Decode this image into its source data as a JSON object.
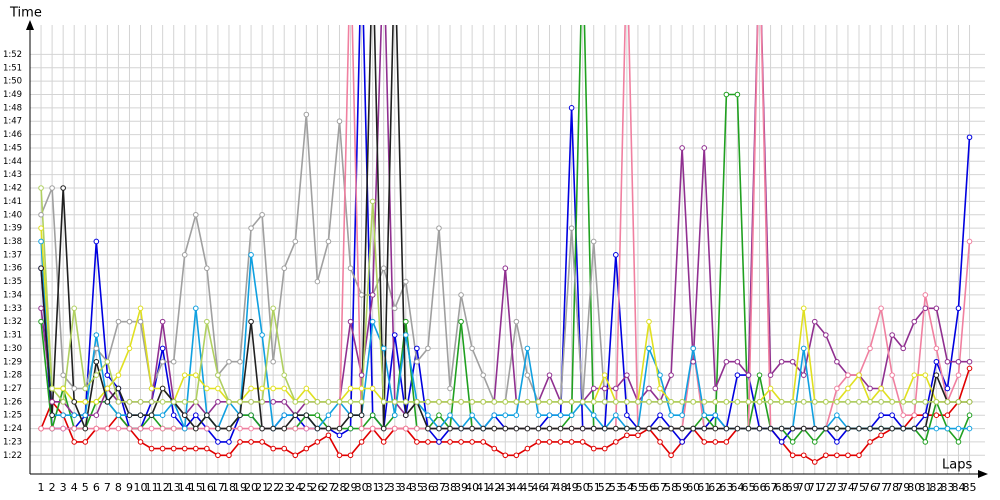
{
  "chart_data": {
    "type": "line",
    "y_label": "Time",
    "x_label": "Laps",
    "xlim": [
      0,
      86.4
    ],
    "ylim": [
      80.6,
      114.2
    ],
    "grid": true,
    "xticks": [
      1,
      2,
      3,
      4,
      5,
      6,
      7,
      8,
      9,
      10,
      11,
      12,
      13,
      14,
      15,
      16,
      17,
      18,
      19,
      20,
      21,
      22,
      23,
      24,
      25,
      26,
      27,
      28,
      29,
      30,
      31,
      32,
      33,
      34,
      35,
      36,
      37,
      38,
      39,
      40,
      41,
      42,
      43,
      44,
      45,
      46,
      47,
      48,
      49,
      50,
      51,
      52,
      53,
      54,
      55,
      56,
      57,
      58,
      59,
      60,
      61,
      62,
      63,
      64,
      65,
      66,
      67,
      68,
      69,
      70,
      71,
      72,
      73,
      74,
      75,
      76,
      77,
      78,
      79,
      80,
      81,
      82,
      83,
      84,
      85
    ],
    "yticks": [
      {
        "value": 82,
        "label": "1:22"
      },
      {
        "value": 83,
        "label": "1:23"
      },
      {
        "value": 84,
        "label": "1:24"
      },
      {
        "value": 85,
        "label": "1:25"
      },
      {
        "value": 86,
        "label": "1:26"
      },
      {
        "value": 87,
        "label": "1:27"
      },
      {
        "value": 88,
        "label": "1:28"
      },
      {
        "value": 89,
        "label": "1:29"
      },
      {
        "value": 90,
        "label": "1:30"
      },
      {
        "value": 91,
        "label": "1:31"
      },
      {
        "value": 92,
        "label": "1:32"
      },
      {
        "value": 93,
        "label": "1:33"
      },
      {
        "value": 94,
        "label": "1:34"
      },
      {
        "value": 95,
        "label": "1:35"
      },
      {
        "value": 96,
        "label": "1:36"
      },
      {
        "value": 97,
        "label": "1:37"
      },
      {
        "value": 98,
        "label": "1:38"
      },
      {
        "value": 99,
        "label": "1:39"
      },
      {
        "value": 100,
        "label": "1:40"
      },
      {
        "value": 101,
        "label": "1:41"
      },
      {
        "value": 102,
        "label": "1:42"
      },
      {
        "value": 103,
        "label": "1:43"
      },
      {
        "value": 104,
        "label": "1:44"
      },
      {
        "value": 105,
        "label": "1:45"
      },
      {
        "value": 106,
        "label": "1:46"
      },
      {
        "value": 107,
        "label": "1:47"
      },
      {
        "value": 108,
        "label": "1:48"
      },
      {
        "value": 109,
        "label": "1:49"
      },
      {
        "value": 110,
        "label": "1:50"
      },
      {
        "value": 111,
        "label": "1:51"
      },
      {
        "value": 112,
        "label": "1:52"
      }
    ],
    "series": [
      {
        "color": "#e00000",
        "values": [
          84,
          86,
          85,
          83,
          83,
          84,
          84,
          85,
          84,
          83,
          82.5,
          82.5,
          82.5,
          82.5,
          82.5,
          82.5,
          82,
          82,
          83,
          83,
          83,
          82.5,
          82.5,
          82,
          82.5,
          83,
          83.5,
          82,
          82,
          83,
          84,
          83,
          84,
          84,
          83,
          83,
          83,
          83,
          83,
          83,
          83,
          82.5,
          82,
          82,
          82.5,
          83,
          83,
          83,
          83,
          83,
          82.5,
          82.5,
          83,
          83.5,
          83.5,
          84,
          83,
          82,
          83,
          84,
          83,
          83,
          83,
          84,
          84,
          84,
          84,
          83,
          82,
          82,
          81.5,
          82,
          82,
          82,
          82,
          83,
          83.5,
          84,
          84,
          85,
          85,
          85,
          85,
          86,
          88.5
        ]
      },
      {
        "color": "#0000e0",
        "values": [
          96,
          84,
          84,
          84,
          85,
          98,
          88,
          87,
          84,
          84,
          86,
          90,
          85,
          84,
          85,
          84,
          83,
          83,
          85,
          85,
          84,
          84,
          85,
          85,
          84,
          84,
          84,
          83.5,
          84,
          120,
          85,
          84,
          91,
          85,
          90,
          84,
          83,
          84,
          84,
          84,
          84,
          85,
          84,
          84,
          84,
          84,
          85,
          85,
          108,
          84,
          84,
          84,
          97,
          85,
          84,
          84,
          85,
          84,
          83,
          84,
          84,
          85,
          84,
          88,
          88,
          84,
          84,
          83,
          84,
          84,
          84,
          84,
          83,
          84,
          84,
          84,
          85,
          85,
          84,
          84,
          85,
          89,
          87,
          93,
          105.8
        ]
      },
      {
        "color": "#20a020",
        "values": [
          92,
          84,
          87,
          84,
          84,
          86,
          86,
          85,
          84,
          84,
          85,
          84,
          84,
          84,
          84,
          85,
          84,
          84,
          85,
          85,
          84,
          84,
          84,
          84,
          85,
          85,
          84,
          84,
          84,
          84,
          85,
          84,
          85,
          92,
          84,
          84,
          85,
          84,
          92,
          84,
          84,
          84,
          84,
          84,
          84,
          84,
          84,
          84,
          85,
          120,
          84,
          84,
          84,
          84,
          84,
          84,
          84,
          84,
          84,
          84,
          85,
          84,
          109,
          109,
          84,
          88,
          84,
          84,
          83,
          84,
          83,
          84,
          84,
          84,
          84,
          84,
          84,
          84,
          84,
          84,
          83,
          86,
          84,
          83,
          85
        ]
      },
      {
        "color": "#a0a0a0",
        "values": [
          100,
          102,
          88,
          87,
          87,
          90,
          89,
          92,
          92,
          92,
          87,
          89,
          89,
          97,
          100,
          96,
          88,
          89,
          89,
          99,
          100,
          89,
          96,
          98,
          107.5,
          95,
          98,
          107,
          96,
          94,
          94,
          96,
          93,
          95,
          89,
          90,
          99,
          87,
          94,
          90,
          88,
          86,
          86,
          92,
          88,
          86,
          86,
          86,
          99,
          86,
          98,
          86,
          86,
          86,
          86,
          86,
          86,
          86,
          86,
          86,
          86,
          86,
          86,
          86,
          86,
          86,
          86,
          86,
          86,
          86,
          86,
          86,
          86,
          86,
          86,
          86,
          86,
          86,
          86,
          86,
          86,
          86,
          86,
          86,
          86
        ]
      },
      {
        "color": "#903090",
        "values": [
          93,
          86,
          86,
          85,
          85,
          85,
          87,
          86,
          86,
          86,
          86,
          92,
          86,
          85,
          86,
          85,
          86,
          86,
          86,
          86,
          86,
          86,
          86,
          85,
          86,
          86,
          86,
          86,
          92,
          88,
          94,
          120,
          86,
          85,
          86,
          86,
          86,
          86,
          86,
          86,
          86,
          86,
          96,
          86,
          86,
          86,
          88,
          86,
          86,
          86,
          87,
          87,
          87,
          88,
          86,
          87,
          86,
          88,
          105,
          89,
          105,
          87,
          89,
          89,
          88,
          120,
          88,
          89,
          89,
          88,
          92,
          91,
          89,
          88,
          88,
          87,
          87,
          91,
          90,
          92,
          93,
          93,
          89,
          89,
          89
        ]
      },
      {
        "color": "#f080a0",
        "values": [
          84,
          84,
          84,
          84,
          84,
          84,
          84,
          84,
          84,
          84,
          84,
          84,
          84,
          84,
          84,
          84,
          84,
          84,
          84,
          84,
          84,
          84,
          84,
          84,
          84,
          84,
          84,
          84,
          120,
          84,
          84,
          84,
          84,
          84,
          84,
          84,
          84,
          84,
          84,
          84,
          84,
          84,
          84,
          84,
          84,
          84,
          84,
          84,
          84,
          84,
          84,
          84,
          84,
          120,
          84,
          84,
          84,
          84,
          84,
          90,
          84,
          84,
          84,
          84,
          84,
          120,
          84,
          84,
          84,
          84,
          84,
          84,
          87,
          88,
          88,
          90,
          93,
          88,
          85,
          85,
          94,
          90,
          86,
          88,
          98
        ]
      },
      {
        "color": "#10a0e0",
        "values": [
          98,
          85,
          85,
          85,
          85,
          91,
          86,
          85,
          85,
          85,
          85,
          85,
          86,
          84,
          93,
          85,
          84,
          86,
          85,
          97,
          91,
          84,
          85,
          85,
          85,
          84,
          85,
          86,
          85,
          85,
          92,
          90,
          85,
          91,
          86,
          85,
          84,
          85,
          84,
          85,
          84,
          85,
          85,
          85,
          90,
          85,
          85,
          85,
          85,
          86,
          85,
          84,
          85,
          84,
          84,
          90,
          88,
          85,
          85,
          90,
          85,
          85,
          84,
          84,
          84,
          84,
          84,
          84,
          84,
          90,
          84,
          84,
          85,
          84,
          84,
          84,
          84,
          84,
          84,
          84,
          84,
          84,
          84,
          84,
          84
        ]
      },
      {
        "color": "#e0e020",
        "values": [
          99,
          87,
          87,
          86,
          86,
          86,
          87,
          88,
          90,
          93,
          87,
          87,
          86,
          88,
          88,
          87,
          87,
          86,
          86,
          87,
          87,
          87,
          87,
          86,
          87,
          86,
          86,
          86,
          87,
          87,
          87,
          86,
          86,
          86,
          86,
          86,
          86,
          86,
          86,
          86,
          86,
          86,
          86,
          86,
          86,
          86,
          86,
          86,
          86,
          86,
          86,
          88,
          86,
          86,
          86,
          92,
          87,
          86,
          86,
          86,
          86,
          86,
          86,
          86,
          86,
          86,
          87,
          86,
          86,
          93,
          86,
          86,
          86,
          87,
          88,
          86,
          87,
          86,
          86,
          88,
          88,
          86,
          86,
          86,
          86
        ]
      },
      {
        "color": "#202020",
        "values": [
          96,
          85,
          102,
          86,
          84,
          89,
          86,
          87,
          85,
          85,
          85,
          87,
          86,
          85,
          84,
          85,
          84,
          84,
          85,
          92,
          84,
          84,
          84,
          85,
          85,
          84,
          84,
          84,
          85,
          85,
          120,
          84,
          120,
          85,
          86,
          84,
          84,
          84,
          84,
          84,
          84,
          84,
          84,
          84,
          84,
          84,
          84,
          84,
          84,
          84,
          84,
          84,
          84,
          84,
          84,
          84,
          84,
          84,
          84,
          84,
          84,
          84,
          84,
          84,
          84,
          84,
          84,
          84,
          84,
          84,
          84,
          84,
          84,
          84,
          84,
          84,
          84,
          84,
          84,
          84,
          84,
          88,
          86,
          86,
          86
        ]
      },
      {
        "color": "#b0d060",
        "values": [
          102,
          87,
          86,
          93,
          87,
          88,
          89,
          86,
          86,
          86,
          86,
          86,
          86,
          86,
          86,
          92,
          88,
          86,
          86,
          86,
          86,
          93,
          88,
          86,
          86,
          86,
          86,
          86,
          86,
          86,
          101,
          86,
          86,
          86,
          86,
          86,
          86,
          86,
          86,
          86,
          86,
          86,
          86,
          86,
          86,
          86,
          86,
          86,
          86,
          86,
          86,
          86,
          86,
          86,
          86,
          86,
          86,
          86,
          86,
          86,
          86,
          86,
          86,
          86,
          86,
          86,
          86,
          86,
          86,
          86,
          86,
          86,
          86,
          86,
          86,
          86,
          86,
          86,
          86,
          86,
          86,
          86,
          86,
          86,
          86
        ]
      }
    ]
  }
}
